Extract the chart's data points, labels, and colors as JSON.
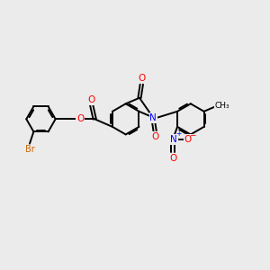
{
  "bg_color": "#ebebeb",
  "bond_color": "#000000",
  "bond_width": 1.4,
  "atom_colors": {
    "Br": "#cc6600",
    "O": "#ff0000",
    "N": "#0000ff",
    "C": "#000000"
  },
  "figsize": [
    3.0,
    3.0
  ],
  "dpi": 100
}
